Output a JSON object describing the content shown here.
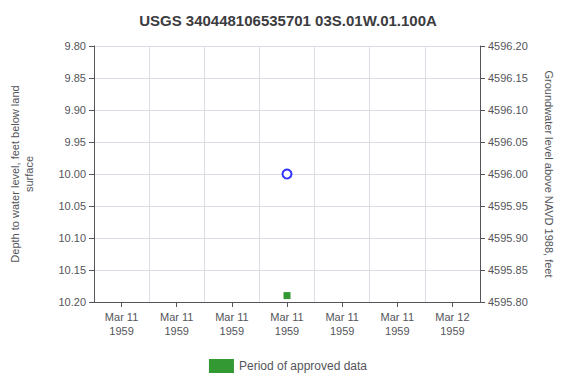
{
  "chart_data": {
    "type": "scatter",
    "title": "USGS 340448106535701 03S.01W.01.100A",
    "categories": [
      "Mar 11\n1959",
      "Mar 11\n1959",
      "Mar 11\n1959",
      "Mar 11\n1959",
      "Mar 11\n1959",
      "Mar 11\n1959",
      "Mar 12\n1959"
    ],
    "ylabel": "Depth to water level, feet below land\nsurface",
    "y2label": "Groundwater level above NAVD 1988, feet",
    "ylim": [
      10.2,
      9.8
    ],
    "yticks": [
      {
        "value": 9.8,
        "label": "9.80"
      },
      9.85,
      {
        "value": 9.9,
        "label": "9.90"
      },
      9.95,
      {
        "value": 10.0,
        "label": "10.00"
      },
      10.05,
      {
        "value": 10.1,
        "label": "10.10"
      },
      10.15,
      {
        "value": 10.2,
        "label": "10.20"
      }
    ],
    "y2lim": [
      4595.8,
      4596.2
    ],
    "y2ticks": [
      {
        "value": 4595.8,
        "label": "4595.80"
      },
      4595.85,
      {
        "value": 4595.9,
        "label": "4595.90"
      },
      4595.95,
      {
        "value": 4596.0,
        "label": "4596.00"
      },
      4596.05,
      {
        "value": 4596.1,
        "label": "4596.10"
      },
      4596.15,
      {
        "value": 4596.2,
        "label": "4596.20"
      }
    ],
    "series": [
      {
        "color": "#0000ff",
        "marker": "open_circle",
        "values": [
          null,
          null,
          null,
          10.0,
          null,
          null,
          null
        ]
      },
      {
        "name": "Period of approved data",
        "color": "#008000",
        "marker": "square",
        "values": [
          null,
          null,
          null,
          10.19,
          null,
          null,
          null
        ]
      }
    ],
    "grid": true,
    "legend": "bottom"
  }
}
